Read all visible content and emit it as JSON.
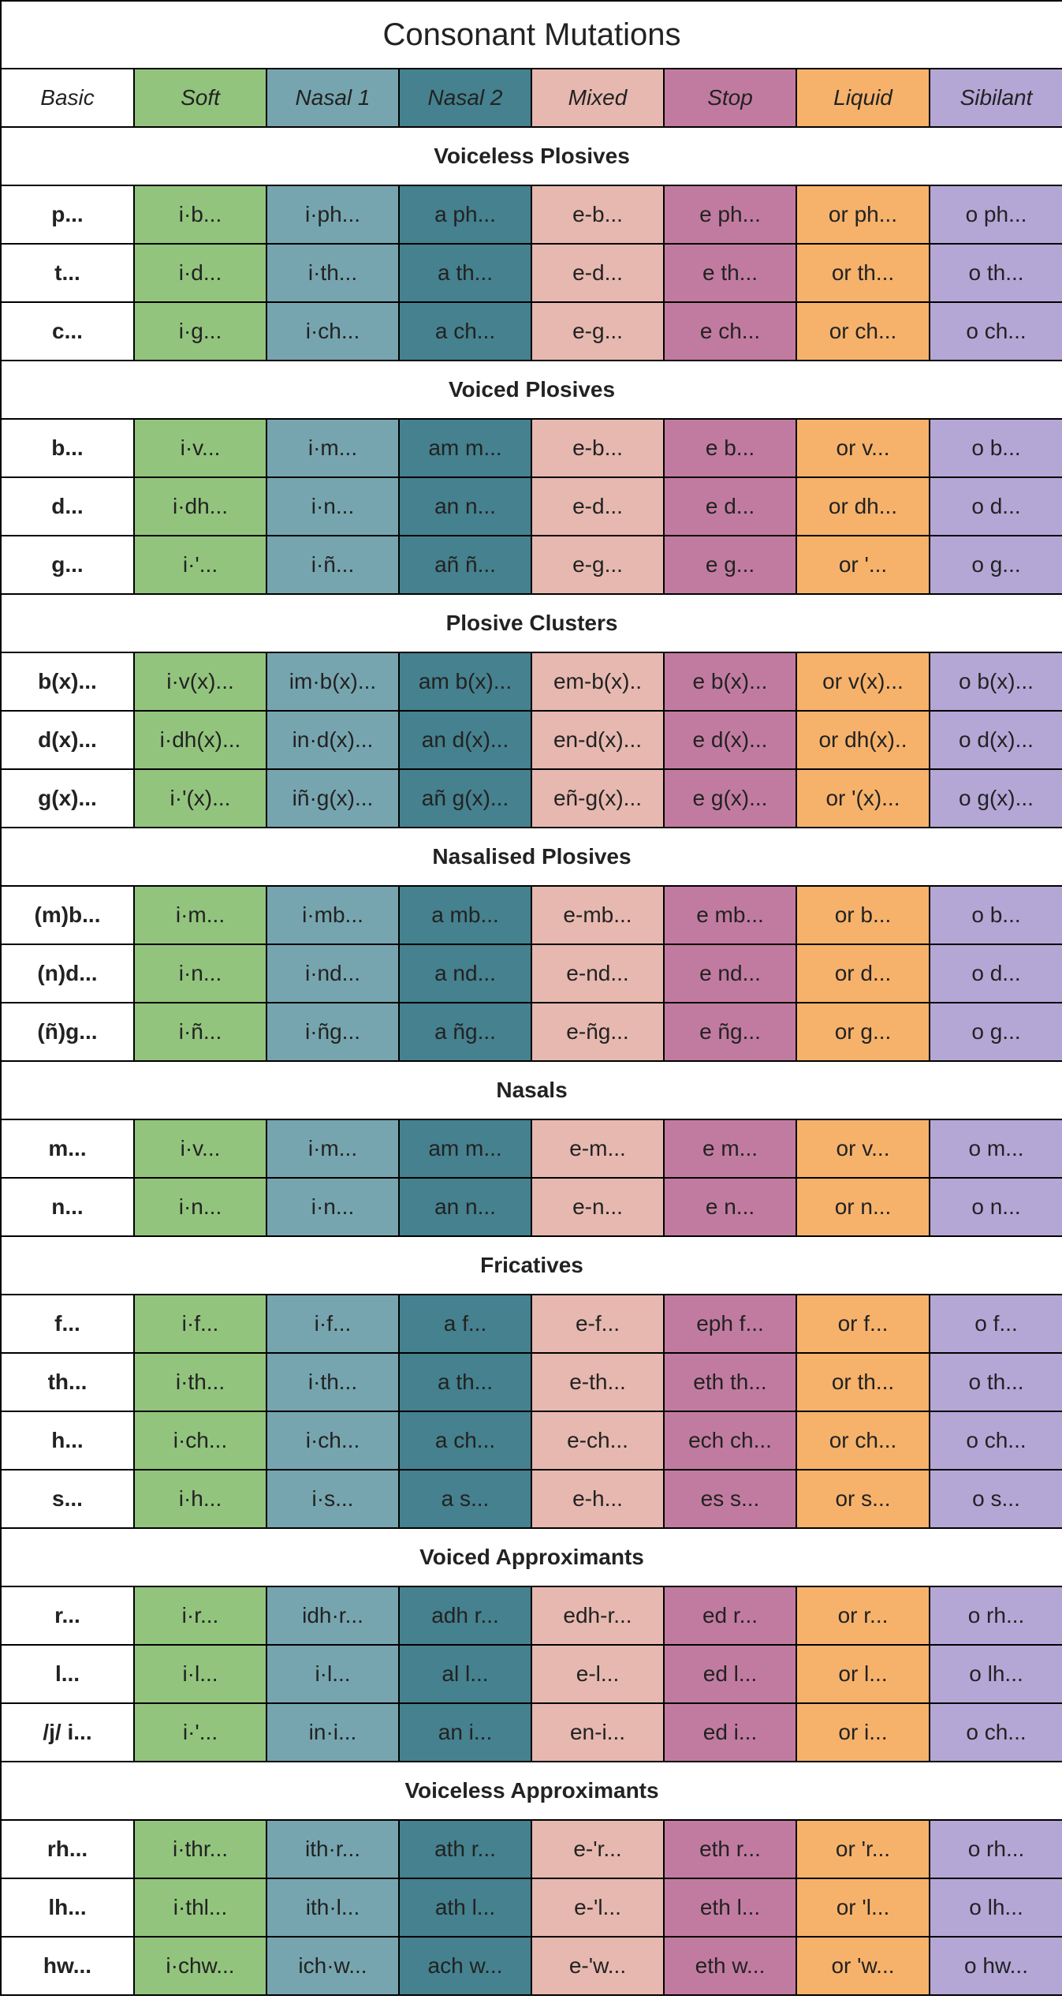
{
  "title": "Consonant Mutations",
  "colors": {
    "basic": "#ffffff",
    "soft": "#92c47d",
    "nasal1": "#76a5af",
    "nasal2": "#45818e",
    "mixed": "#e6b8af",
    "stop": "#c27ba0",
    "liquid": "#f6b26b",
    "sibilant": "#b4a7d6"
  },
  "headers": [
    {
      "key": "basic",
      "label": "Basic"
    },
    {
      "key": "soft",
      "label": "Soft"
    },
    {
      "key": "nasal1",
      "label": "Nasal 1"
    },
    {
      "key": "nasal2",
      "label": "Nasal 2"
    },
    {
      "key": "mixed",
      "label": "Mixed"
    },
    {
      "key": "stop",
      "label": "Stop"
    },
    {
      "key": "liquid",
      "label": "Liquid"
    },
    {
      "key": "sibilant",
      "label": "Sibilant"
    }
  ],
  "sections": [
    {
      "name": "Voiceless Plosives",
      "rows": [
        [
          "p...",
          "i·b...",
          "i·ph...",
          "a ph...",
          "e-b...",
          "e ph...",
          "or ph...",
          "o ph..."
        ],
        [
          "t...",
          "i·d...",
          "i·th...",
          "a th...",
          "e-d...",
          "e th...",
          "or th...",
          "o th..."
        ],
        [
          "c...",
          "i·g...",
          "i·ch...",
          "a ch...",
          "e-g...",
          "e ch...",
          "or ch...",
          "o ch..."
        ]
      ]
    },
    {
      "name": "Voiced Plosives",
      "rows": [
        [
          "b...",
          "i·v...",
          "i·m...",
          "am m...",
          "e-b...",
          "e b...",
          "or v...",
          "o b..."
        ],
        [
          "d...",
          "i·dh...",
          "i·n...",
          "an n...",
          "e-d...",
          "e d...",
          "or dh...",
          "o d..."
        ],
        [
          "g...",
          "i·'...",
          "i·ñ...",
          "añ ñ...",
          "e-g...",
          "e g...",
          "or '...",
          "o g..."
        ]
      ]
    },
    {
      "name": "Plosive Clusters",
      "rows": [
        [
          "b(x)...",
          "i·v(x)...",
          "im·b(x)...",
          "am b(x)...",
          "em-b(x)..",
          "e b(x)...",
          "or v(x)...",
          "o b(x)..."
        ],
        [
          "d(x)...",
          "i·dh(x)...",
          "in·d(x)...",
          "an d(x)...",
          "en-d(x)...",
          "e d(x)...",
          "or dh(x)..",
          "o d(x)..."
        ],
        [
          "g(x)...",
          "i·'(x)...",
          "iñ·g(x)...",
          "añ g(x)...",
          "eñ-g(x)...",
          "e g(x)...",
          "or '(x)...",
          "o g(x)..."
        ]
      ]
    },
    {
      "name": "Nasalised Plosives",
      "rows": [
        [
          "(m)b...",
          "i·m...",
          "i·mb...",
          "a mb...",
          "e-mb...",
          "e mb...",
          "or b...",
          "o b..."
        ],
        [
          "(n)d...",
          "i·n...",
          "i·nd...",
          "a nd...",
          "e-nd...",
          "e nd...",
          "or d...",
          "o d..."
        ],
        [
          "(ñ)g...",
          "i·ñ...",
          "i·ñg...",
          "a ñg...",
          "e-ñg...",
          "e ñg...",
          "or g...",
          "o g..."
        ]
      ]
    },
    {
      "name": "Nasals",
      "rows": [
        [
          "m...",
          "i·v...",
          "i·m...",
          "am m...",
          "e-m...",
          "e m...",
          "or v...",
          "o m..."
        ],
        [
          "n...",
          "i·n...",
          "i·n...",
          "an n...",
          "e-n...",
          "e n...",
          "or n...",
          "o n..."
        ]
      ]
    },
    {
      "name": "Fricatives",
      "rows": [
        [
          "f...",
          "i·f...",
          "i·f...",
          "a f...",
          "e-f...",
          "eph f...",
          "or f...",
          "o f..."
        ],
        [
          "th...",
          "i·th...",
          "i·th...",
          "a th...",
          "e-th...",
          "eth th...",
          "or th...",
          "o th..."
        ],
        [
          "h...",
          "i·ch...",
          "i·ch...",
          "a ch...",
          "e-ch...",
          "ech ch...",
          "or ch...",
          "o ch..."
        ],
        [
          "s...",
          "i·h...",
          "i·s...",
          "a s...",
          "e-h...",
          "es s...",
          "or s...",
          "o s..."
        ]
      ]
    },
    {
      "name": "Voiced Approximants",
      "rows": [
        [
          "r...",
          "i·r...",
          "idh·r...",
          "adh r...",
          "edh-r...",
          "ed r...",
          "or r...",
          "o rh..."
        ],
        [
          "l...",
          "i·l...",
          "i·l...",
          "al l...",
          "e-l...",
          "ed l...",
          "or l...",
          "o lh..."
        ],
        [
          "/j/ i...",
          "i·'...",
          "in·i...",
          "an i...",
          "en-i...",
          "ed i...",
          "or i...",
          "o ch..."
        ]
      ]
    },
    {
      "name": "Voiceless Approximants",
      "rows": [
        [
          "rh...",
          "i·thr...",
          "ith·r...",
          "ath r...",
          "e-'r...",
          "eth r...",
          "or 'r...",
          "o rh..."
        ],
        [
          "lh...",
          "i·thl...",
          "ith·l...",
          "ath l...",
          "e-'l...",
          "eth l...",
          "or 'l...",
          "o lh..."
        ],
        [
          "hw...",
          "i·chw...",
          "ich·w...",
          "ach w...",
          "e-'w...",
          "eth w...",
          "or 'w...",
          "o hw..."
        ]
      ]
    }
  ]
}
